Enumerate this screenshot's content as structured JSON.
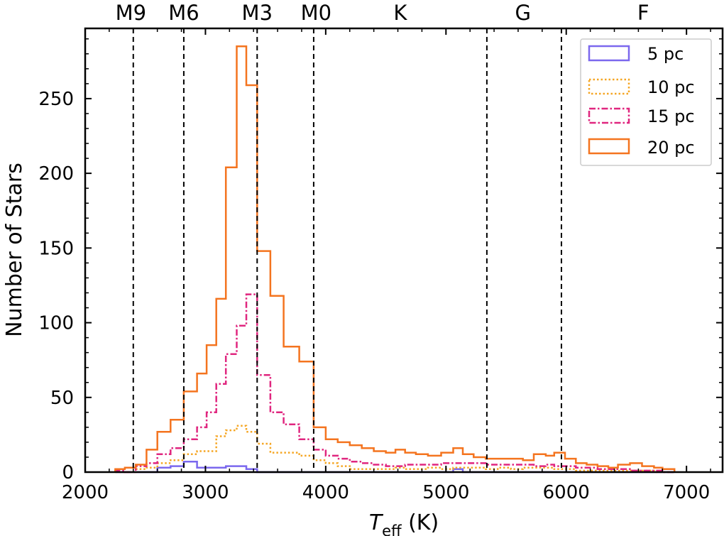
{
  "chart_data": {
    "type": "histogram",
    "xlabel": {
      "main": "T",
      "sub": "eff",
      "units": " (K)"
    },
    "ylabel": "Number of Stars",
    "xlim": [
      2000,
      7300
    ],
    "ylim": [
      0,
      297
    ],
    "xticks": [
      2000,
      3000,
      4000,
      5000,
      6000,
      7000
    ],
    "yticks": [
      0,
      50,
      100,
      150,
      200,
      250
    ],
    "grid": false,
    "legend_position": "top-right",
    "spectral_types": [
      {
        "label": "M9",
        "boundary": 2400,
        "label_x": 2380
      },
      {
        "label": "M6",
        "boundary": 2820,
        "label_x": 2820
      },
      {
        "label": "M3",
        "boundary": 3430,
        "label_x": 3430
      },
      {
        "label": "M0",
        "boundary": 3900,
        "label_x": 3920
      },
      {
        "label": "K",
        "boundary": 5340,
        "label_x": 4620
      },
      {
        "label": "G",
        "boundary": 5960,
        "label_x": 5640
      },
      {
        "label": "F",
        "boundary": null,
        "label_x": 6640
      }
    ],
    "bin_edges": [
      2250,
      2330,
      2420,
      2510,
      2600,
      2710,
      2820,
      2930,
      3010,
      3090,
      3170,
      3260,
      3340,
      3430,
      3540,
      3650,
      3780,
      3900,
      4000,
      4100,
      4200,
      4300,
      4400,
      4500,
      4580,
      4660,
      4750,
      4850,
      4960,
      5060,
      5140,
      5230,
      5330,
      5430,
      5540,
      5640,
      5730,
      5830,
      5900,
      5990,
      6080,
      6170,
      6260,
      6350,
      6430,
      6530,
      6630,
      6730,
      6800,
      6900
    ],
    "series": [
      {
        "name": "5 pc",
        "color": "#7b68ee",
        "style": "solid",
        "values": [
          0,
          0,
          0,
          0,
          3,
          4,
          7,
          3,
          3,
          3,
          4,
          4,
          2,
          0,
          0,
          0,
          0,
          0,
          0,
          0,
          0,
          0,
          0,
          0,
          0,
          0,
          0,
          0,
          0,
          2,
          0,
          0,
          0,
          0,
          0,
          0,
          0,
          0,
          0,
          0,
          0,
          0,
          0,
          0,
          0,
          0,
          0,
          0,
          0
        ]
      },
      {
        "name": "10 pc",
        "color": "#f5a623",
        "style": "dotted",
        "values": [
          0,
          0,
          2,
          3,
          6,
          8,
          12,
          14,
          14,
          24,
          28,
          31,
          27,
          19,
          13,
          13,
          11,
          8,
          6,
          4,
          2,
          2,
          2,
          2,
          3,
          2,
          2,
          3,
          2,
          3,
          3,
          3,
          2,
          3,
          2,
          3,
          3,
          3,
          2,
          2,
          1,
          1,
          1,
          1,
          1,
          1,
          1,
          0,
          0
        ]
      },
      {
        "name": "15 pc",
        "color": "#e0267f",
        "style": "dashdot",
        "values": [
          1,
          0,
          4,
          6,
          12,
          16,
          22,
          30,
          40,
          59,
          79,
          98,
          119,
          65,
          40,
          32,
          22,
          15,
          11,
          9,
          7,
          6,
          5,
          4,
          4,
          5,
          5,
          5,
          6,
          6,
          6,
          6,
          5,
          5,
          5,
          5,
          4,
          5,
          4,
          4,
          3,
          3,
          2,
          2,
          2,
          1,
          1,
          1,
          0
        ]
      },
      {
        "name": "20 pc",
        "color": "#f4741f",
        "style": "solid",
        "values": [
          2,
          3,
          5,
          15,
          27,
          35,
          54,
          66,
          85,
          116,
          204,
          285,
          259,
          148,
          118,
          84,
          74,
          30,
          22,
          20,
          18,
          16,
          14,
          13,
          15,
          13,
          12,
          11,
          13,
          16,
          12,
          10,
          9,
          9,
          9,
          8,
          12,
          11,
          13,
          9,
          6,
          5,
          4,
          3,
          5,
          6,
          4,
          3,
          2
        ]
      }
    ]
  }
}
